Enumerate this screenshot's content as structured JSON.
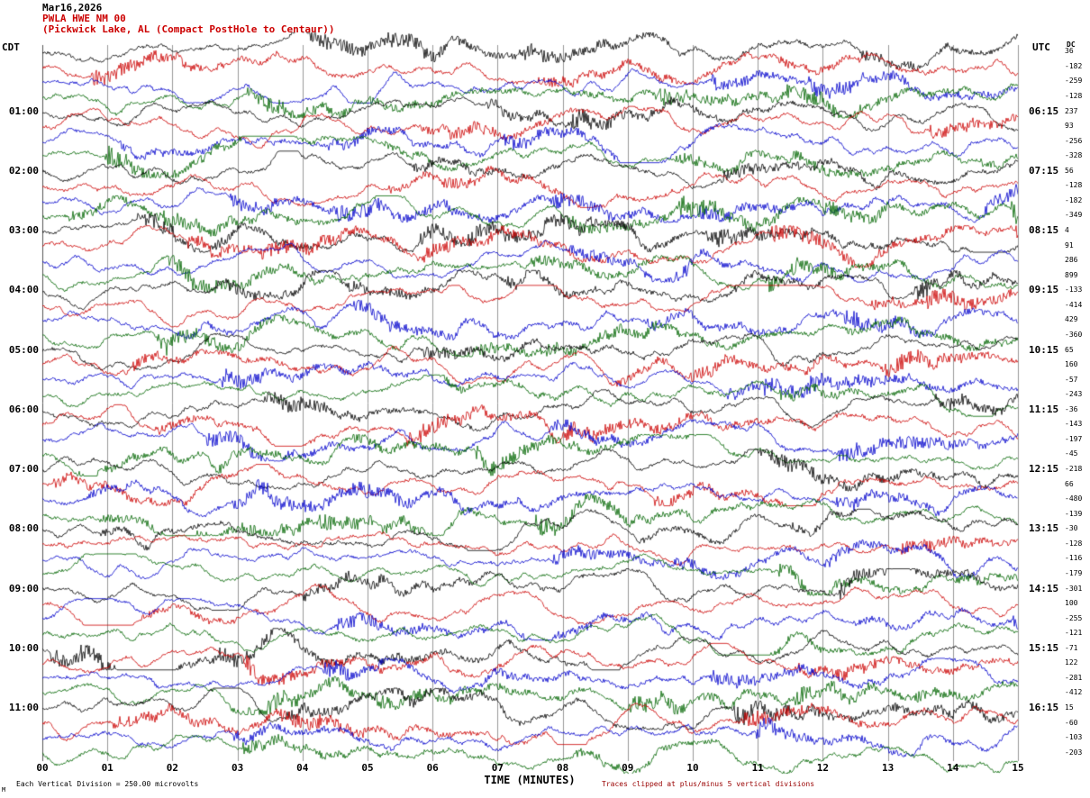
{
  "header": {
    "date": "Mar16,2026",
    "station": "PWLA HWE NM 00",
    "description": "(Pickwick Lake, AL (Compact PostHole to Centaur))"
  },
  "axes": {
    "left_tz": "CDT",
    "right_tz": "UTC",
    "dc_header": "DC",
    "x_title": "TIME (MINUTES)",
    "x_ticks": [
      "00",
      "01",
      "02",
      "03",
      "04",
      "05",
      "06",
      "07",
      "08",
      "09",
      "10",
      "11",
      "12",
      "13",
      "14",
      "15"
    ]
  },
  "left_labels": [
    "01:00",
    "02:00",
    "03:00",
    "04:00",
    "05:00",
    "06:00",
    "07:00",
    "08:00",
    "09:00",
    "10:00",
    "11:00"
  ],
  "right_labels": [
    "06:15",
    "07:15",
    "08:15",
    "09:15",
    "10:15",
    "11:15",
    "12:15",
    "13:15",
    "14:15",
    "15:15",
    "16:15"
  ],
  "footer": {
    "left": "Each Vertical Division = 250.00 microvolts",
    "right": "Traces clipped at plus/minus 5 vertical divisions",
    "marker": "M"
  },
  "colors": {
    "trace_cycle": [
      "#000000",
      "#cc0000",
      "#0000cc",
      "#006600"
    ],
    "grid": "#999999",
    "grid_edge": "#555555",
    "station_text": "#cc0000",
    "clip_note_text": "#990000"
  },
  "chart_data": {
    "type": "line",
    "subtype": "helicorder-seismogram",
    "title": "PWLA HWE NM 00 (Pickwick Lake, AL (Compact PostHole to Centaur))",
    "date": "Mar16,2026",
    "rows": 48,
    "minutes_per_row": 15,
    "x_range_minutes": [
      0,
      15
    ],
    "row_color_cycle": [
      "black",
      "red",
      "blue",
      "green"
    ],
    "left_time_zone": "CDT",
    "right_time_zone": "UTC",
    "hour_labels_cdt": [
      "01:00",
      "02:00",
      "03:00",
      "04:00",
      "05:00",
      "06:00",
      "07:00",
      "08:00",
      "09:00",
      "10:00",
      "11:00"
    ],
    "hour_labels_utc": [
      "06:15",
      "07:15",
      "08:15",
      "09:15",
      "10:15",
      "11:15",
      "12:15",
      "13:15",
      "14:15",
      "15:15",
      "16:15"
    ],
    "vertical_division_microvolts": 250.0,
    "clip_divisions": 5,
    "grid": "vertical lines every 1 minute",
    "dc_offsets": [
      36,
      -182,
      -259,
      -128,
      237,
      93,
      -256,
      -328,
      56,
      -128,
      -182,
      -349,
      4,
      91,
      286,
      899,
      -133,
      -414,
      429,
      -360,
      65,
      160,
      -57,
      -243,
      -36,
      -143,
      -197,
      -45,
      -218,
      66,
      -480,
      -139,
      -30,
      -128,
      -116,
      -179,
      -301,
      100,
      -255,
      -121,
      -71,
      122,
      -281,
      -412,
      15,
      -60,
      -103,
      -203
    ],
    "seed": 20260316,
    "waveform_note": "continuous seismic background noise with wandering baseline and intermittent bursts; values not individually labeled in image"
  }
}
